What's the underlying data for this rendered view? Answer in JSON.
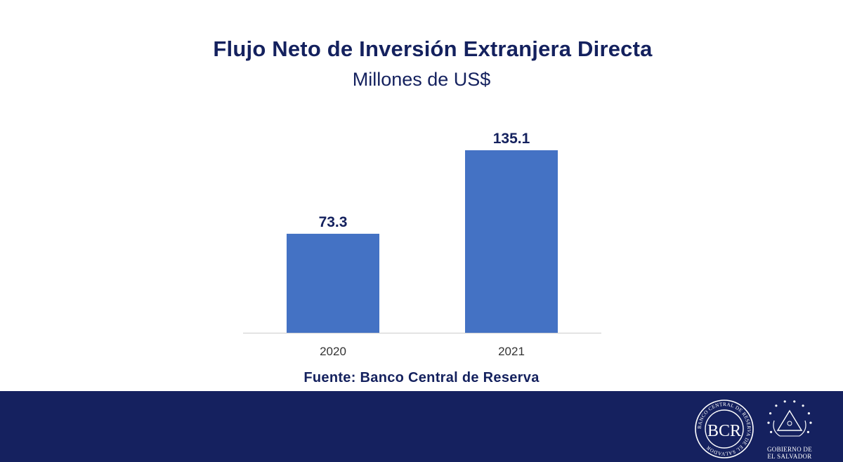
{
  "title": "Flujo Neto de Inversión Extranjera Directa",
  "subtitle": "Millones de US$",
  "source": "Fuente: Banco Central de Reserva",
  "colors": {
    "bar": "#4472c4",
    "text": "#14215e",
    "footer": "#15215f",
    "axis": "#d9d9d9"
  },
  "chart_data": {
    "type": "bar",
    "title": "Flujo Neto de Inversión Extranjera Directa",
    "subtitle": "Millones de US$",
    "categories": [
      "2020",
      "2021"
    ],
    "values": [
      73.3,
      135.1
    ],
    "value_labels": [
      "73.3",
      "135.1"
    ],
    "xlabel": "",
    "ylabel": "",
    "ylim": [
      0,
      140
    ],
    "grid": false,
    "legend": "none"
  },
  "footer": {
    "bcr_logo_letters": "BCR",
    "bcr_logo_ring_text": "BANCO CENTRAL DE RESERVA DE EL SALVADOR",
    "gov_logo_line1": "GOBIERNO DE",
    "gov_logo_line2": "EL SALVADOR",
    "gov_emblem_icon": "el-salvador-coat-of-arms-icon"
  }
}
